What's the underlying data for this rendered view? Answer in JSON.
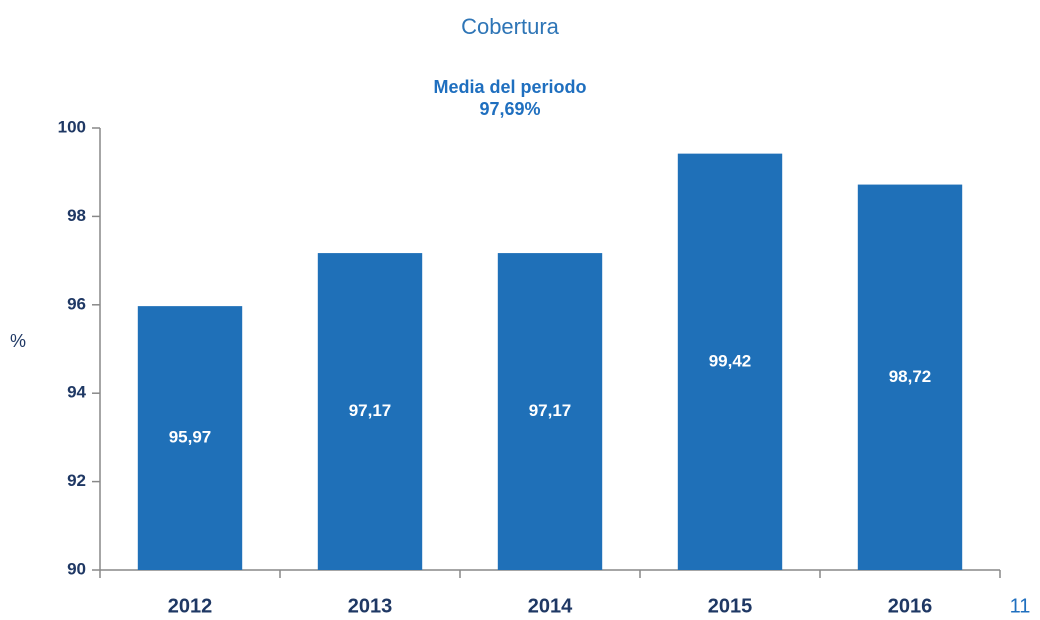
{
  "chart_data": {
    "type": "bar",
    "title": "Cobertura",
    "subtitle": "Media del periodo",
    "annotation": "97,69%",
    "y_label": "%",
    "categories": [
      "2012",
      "2013",
      "2014",
      "2015",
      "2016"
    ],
    "values": [
      95.97,
      97.17,
      97.17,
      99.42,
      98.72
    ],
    "value_labels": [
      "95,97",
      "97,17",
      "97,17",
      "99,42",
      "98,72"
    ],
    "color": "#1f70b8",
    "ylim": [
      90,
      100
    ],
    "yticks": [
      90,
      92,
      94,
      96,
      98,
      100
    ],
    "grid": false
  },
  "page_number": "11"
}
